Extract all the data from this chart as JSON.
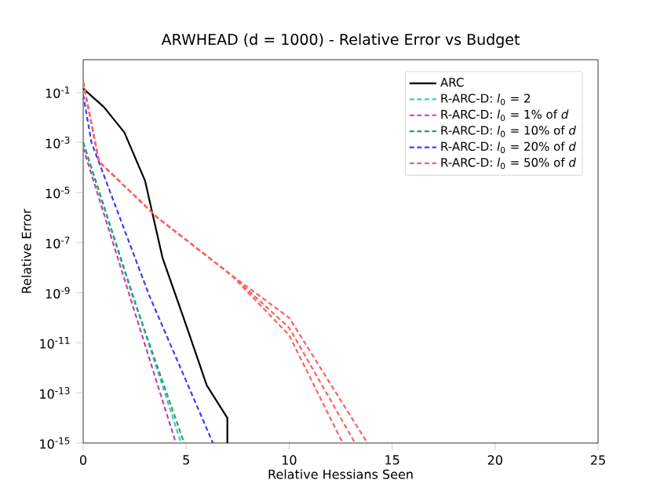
{
  "chart_data": {
    "type": "line",
    "title": "ARWHEAD (d = 1000) - Relative Error vs Budget",
    "xlabel": "Relative Hessians Seen",
    "ylabel": "Relative Error",
    "log": "y",
    "grid": false,
    "legend": "top right",
    "xlim": [
      0,
      25
    ],
    "ylim": [
      1e-15,
      2
    ],
    "xticks": [
      0,
      5,
      10,
      15,
      20,
      25
    ],
    "yticks": [
      {
        "value": 0.1,
        "label": "10$^{-1}$"
      },
      {
        "value": 0.001,
        "label": "10$^{-3}$"
      },
      {
        "value": 1e-05,
        "label": "10$^{-5}$"
      },
      {
        "value": 1e-07,
        "label": "10$^{-7}$"
      },
      {
        "value": 1e-09,
        "label": "10$^{-9}$"
      },
      {
        "value": 1e-11,
        "label": "10$^{-11}$"
      },
      {
        "value": 1e-13,
        "label": "10$^{-13}$"
      },
      {
        "value": 1e-15,
        "label": "10$^{-15}$"
      }
    ],
    "series": [
      {
        "name": "ARC",
        "color": "#000000",
        "line_style": "solid",
        "x": [
          0,
          1,
          2,
          3,
          3.85,
          5,
          6,
          7,
          7
        ],
        "values": [
          0.14,
          0.026,
          0.0025,
          3e-05,
          2.5e-08,
          5e-11,
          2e-13,
          1e-14,
          1e-15
        ]
      },
      {
        "name": "R-ARC-D: *l*$_{0}$ = 2",
        "color": "#40c8c8",
        "line_style": "dashed",
        "x": [
          0,
          4.75
        ],
        "values": [
          0.001,
          1e-15
        ]
      },
      {
        "name": "R-ARC-D: *l*$_{0}$ = 1% of *d*",
        "color": "#c040c0",
        "line_style": "dashed",
        "x": [
          0,
          4.5
        ],
        "values": [
          0.0006,
          1e-15
        ]
      },
      {
        "name": "R-ARC-D: *l*$_{0}$ = 10% of *d*",
        "color": "#2ca060",
        "line_style": "dashed",
        "x": [
          0,
          2.44,
          4.9
        ],
        "values": [
          0.001,
          6e-10,
          1e-15
        ]
      },
      {
        "name": "R-ARC-D: *l*$_{0}$ = 20% of *d*",
        "color": "#3c3cff",
        "line_style": "dashed",
        "x": [
          0,
          0.4,
          3.2,
          6.3
        ],
        "values": [
          0.08,
          0.001,
          8e-10,
          1e-15
        ]
      },
      {
        "name": "R-ARC-D: *l*$_{0}$ = 50% of *d*",
        "color": "#ff6060",
        "line_style": "dashed",
        "x": [
          0,
          0.77,
          3.6,
          7.2,
          10,
          13.8
        ],
        "values": [
          0.25,
          0.00017,
          1e-06,
          5e-09,
          1e-10,
          1e-15
        ]
      },
      {
        "color": "#ff6060",
        "line_style": "dashed",
        "x": [
          0,
          0.77,
          3.6,
          7.2,
          10,
          13.2
        ],
        "values": [
          0.25,
          0.00017,
          1e-06,
          5e-09,
          4e-11,
          1e-15
        ]
      },
      {
        "color": "#ff6060",
        "line_style": "dashed",
        "x": [
          0,
          0.77,
          3.6,
          7.2,
          10,
          12.6
        ],
        "values": [
          0.25,
          0.00017,
          1e-06,
          5e-09,
          2e-11,
          1e-15
        ]
      }
    ]
  }
}
